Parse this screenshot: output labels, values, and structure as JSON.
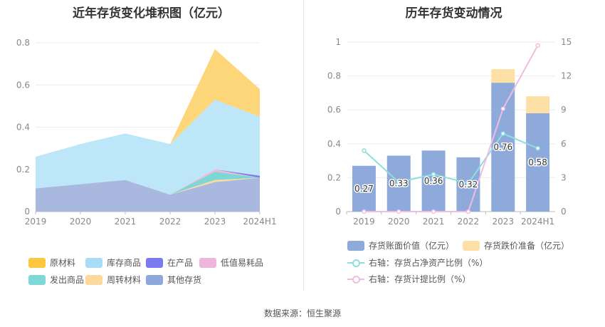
{
  "left_title": "近年存货变化堆积图（亿元）",
  "right_title": "历年存货变动情况",
  "source": "数据来源：恒生聚源",
  "chart_data": [
    {
      "type": "area",
      "title": "近年存货变化堆积图（亿元）",
      "x": [
        "2019",
        "2020",
        "2021",
        "2022",
        "2023",
        "2024H1"
      ],
      "ylim": [
        0,
        0.8
      ],
      "yticks": [
        "0",
        "0.2",
        "0.4",
        "0.6",
        "0.8"
      ],
      "grid": true,
      "legend_position": "bottom",
      "series": [
        {
          "name": "其他存货",
          "color": "#a8b8de",
          "values": [
            0.11,
            0.13,
            0.15,
            0.08,
            0.14,
            0.16
          ]
        },
        {
          "name": "周转材料",
          "color": "#fdd99b",
          "values": [
            0,
            0,
            0,
            0,
            0.01,
            0
          ]
        },
        {
          "name": "发出商品",
          "color": "#7fd6d6",
          "values": [
            0,
            0,
            0,
            0,
            0.04,
            0
          ]
        },
        {
          "name": "低值易耗品",
          "color": "#f2b8d8",
          "values": [
            0,
            0,
            0,
            0,
            0.01,
            0
          ]
        },
        {
          "name": "在产品",
          "color": "#7b7de8",
          "values": [
            0,
            0,
            0,
            0,
            0,
            0.01
          ]
        },
        {
          "name": "库存商品",
          "color": "#bde6f9",
          "values": [
            0.15,
            0.19,
            0.22,
            0.24,
            0.33,
            0.28
          ]
        },
        {
          "name": "原材料",
          "color": "#fdd67a",
          "values": [
            0,
            0,
            0,
            0,
            0.24,
            0.13
          ]
        }
      ],
      "legend_order": [
        "原材料",
        "库存商品",
        "在产品",
        "低值易耗品",
        "发出商品",
        "周转材料",
        "其他存货"
      ],
      "legend_colors": [
        "#fcc73f",
        "#a9dcf7",
        "#7b7bf0",
        "#eeb6dc",
        "#7fd8d8",
        "#fdd99b",
        "#8fa8dc"
      ]
    },
    {
      "type": "bar",
      "title": "历年存货变动情况",
      "categories": [
        "2019",
        "2020",
        "2021",
        "2022",
        "2023",
        "2024H1"
      ],
      "ylim": [
        0,
        1
      ],
      "yticks": [
        "0",
        "0.2",
        "0.4",
        "0.6",
        "0.8",
        "1"
      ],
      "y2lim": [
        0,
        15
      ],
      "y2ticks": [
        "0",
        "3",
        "6",
        "9",
        "12",
        "15"
      ],
      "grid": true,
      "legend_position": "bottom",
      "series": [
        {
          "name": "存货账面价值（亿元）",
          "kind": "bar",
          "axis": "left",
          "color": "#8eaadb",
          "values": [
            0.27,
            0.33,
            0.36,
            0.32,
            0.76,
            0.58
          ],
          "labels": [
            "0.27",
            "0.33",
            "0.36",
            "0.32",
            "0.76",
            "0.58"
          ]
        },
        {
          "name": "存货跌价准备（亿元）",
          "kind": "bar-stack",
          "axis": "left",
          "color": "#fde0a6",
          "values": [
            0,
            0,
            0,
            0,
            0.08,
            0.1
          ]
        },
        {
          "name": "右轴：存货占净资产比例（%）",
          "kind": "line",
          "axis": "right",
          "color": "#8fdede",
          "values": [
            5.4,
            2.6,
            3.3,
            2.5,
            6.9,
            5.6
          ]
        },
        {
          "name": "右轴：存货计提比例（%）",
          "kind": "line",
          "axis": "right",
          "color": "#eebde0",
          "values": [
            0,
            0,
            0,
            0,
            9.1,
            14.7
          ]
        }
      ]
    }
  ]
}
